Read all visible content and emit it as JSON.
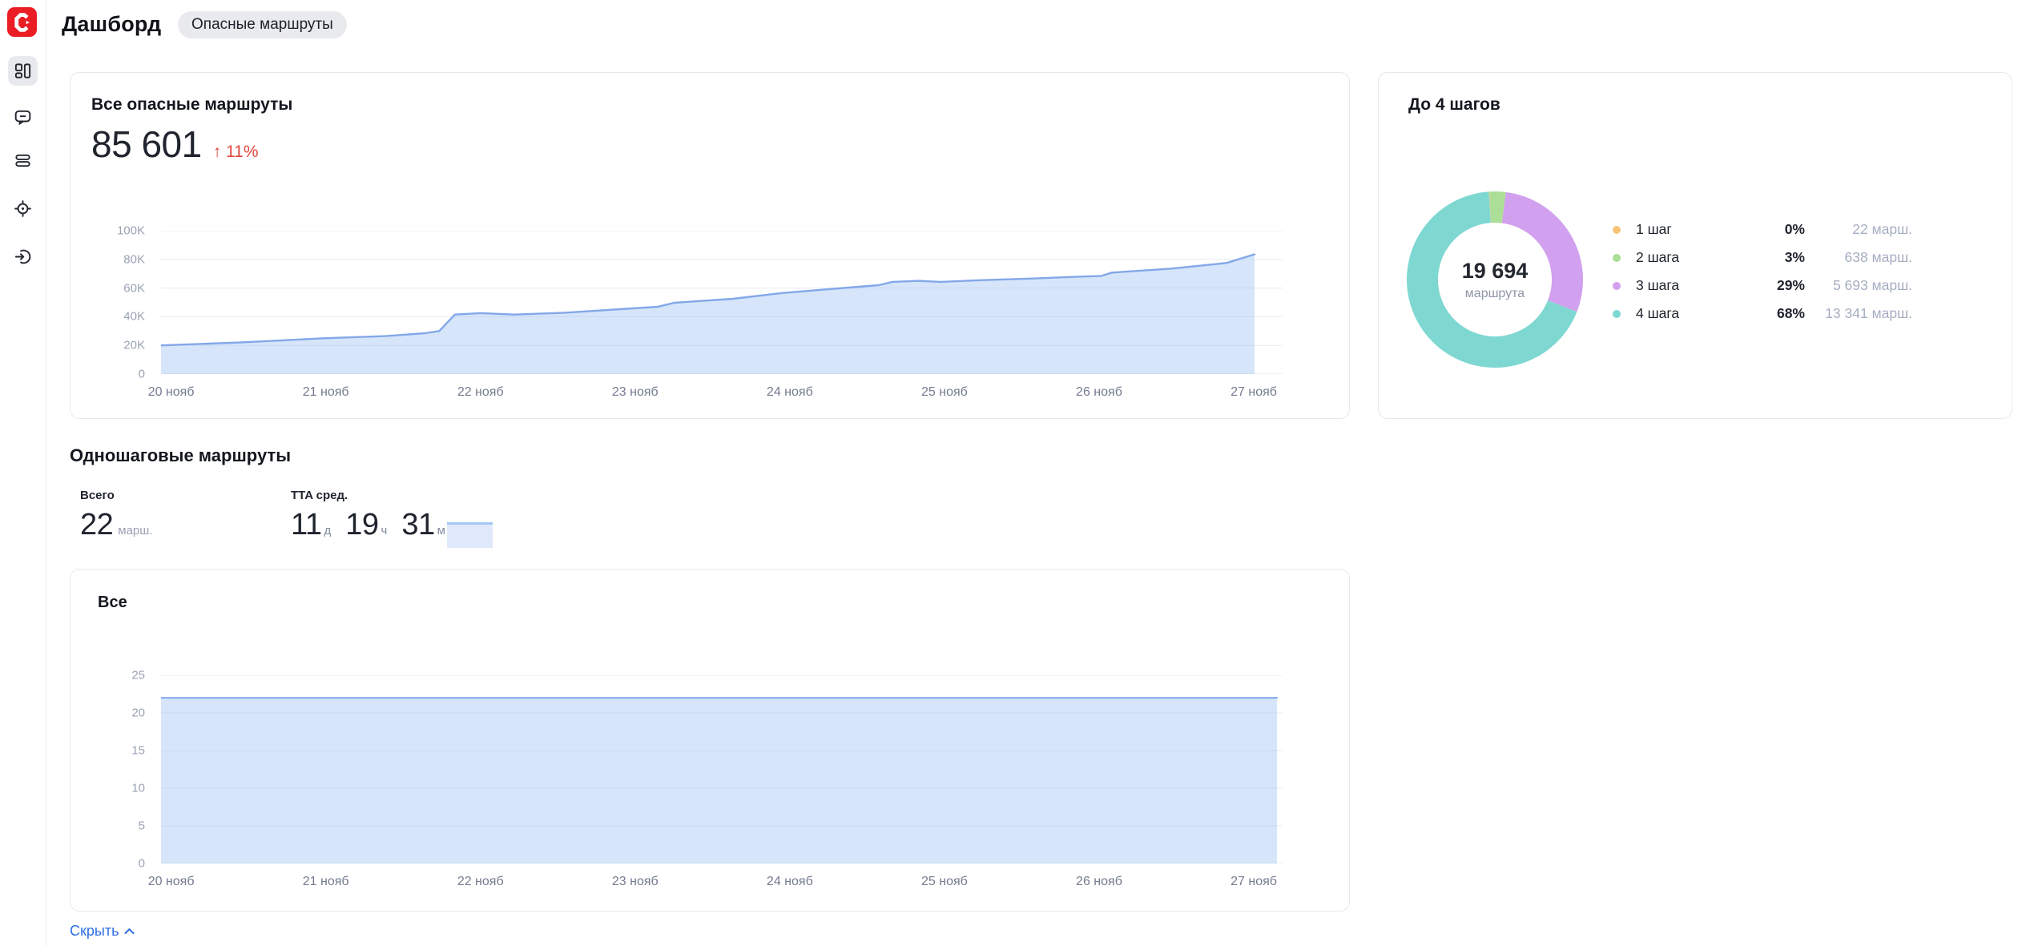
{
  "app": {
    "title": "Дашборд",
    "badge": "Опасные маршруты"
  },
  "sidebar": {
    "items": [
      {
        "id": "dashboard",
        "active": true
      },
      {
        "id": "comments",
        "active": false
      },
      {
        "id": "lists",
        "active": false
      },
      {
        "id": "locate",
        "active": false
      },
      {
        "id": "sign-in",
        "active": false
      }
    ]
  },
  "summary_card": {
    "title": "Все опасные маршруты",
    "value": "85 601",
    "trend_arrow": "↑",
    "trend": "11%"
  },
  "steps_card": {
    "title": "До 4 шагов",
    "center_value": "19 694",
    "center_label": "маршрута",
    "legend": [
      {
        "label": "1 шаг",
        "percent": "0%",
        "count": "22 марш.",
        "color": "#f7c478"
      },
      {
        "label": "2 шага",
        "percent": "3%",
        "count": "638 марш.",
        "color": "#abde96"
      },
      {
        "label": "3 шага",
        "percent": "29%",
        "count": "5 693 марш.",
        "color": "#d1a0ee"
      },
      {
        "label": "4 шага",
        "percent": "68%",
        "count": "13 341 марш.",
        "color": "#7ed8d1"
      }
    ]
  },
  "one_step_section": {
    "title": "Одношаговые маршруты",
    "total_label": "Всего",
    "total_value": "22",
    "total_unit": "марш.",
    "tta_label": "TTA сред.",
    "tta_parts": [
      {
        "value": "11",
        "unit": "д"
      },
      {
        "value": "19",
        "unit": "ч"
      },
      {
        "value": "31",
        "unit": "м"
      }
    ],
    "sub_card_title": "Все",
    "hide_label": "Скрыть"
  },
  "chart_data": [
    {
      "type": "area",
      "title": "Все опасные маршруты",
      "ylim": [
        0,
        100000
      ],
      "y_ticks": [
        "100K",
        "80K",
        "60K",
        "40K",
        "20K",
        "0"
      ],
      "x_ticks": [
        "20 нояб",
        "21 нояб",
        "22 нояб",
        "23 нояб",
        "24 нояб",
        "25 нояб",
        "26 нояб",
        "27 нояб"
      ],
      "line_color": "#83a8e9",
      "fill_color": "rgba(164,197,243,0.45)",
      "grid": true,
      "legend_position": "none",
      "points": [
        [
          0,
          20000
        ],
        [
          0.07,
          22000
        ],
        [
          0.145,
          25000
        ],
        [
          0.2,
          26500
        ],
        [
          0.235,
          28500
        ],
        [
          0.248,
          30000
        ],
        [
          0.262,
          41500
        ],
        [
          0.285,
          42500
        ],
        [
          0.315,
          41500
        ],
        [
          0.36,
          42800
        ],
        [
          0.42,
          45800
        ],
        [
          0.443,
          47000
        ],
        [
          0.458,
          49800
        ],
        [
          0.51,
          52500
        ],
        [
          0.553,
          56500
        ],
        [
          0.6,
          59500
        ],
        [
          0.64,
          62000
        ],
        [
          0.652,
          64300
        ],
        [
          0.675,
          65000
        ],
        [
          0.695,
          64300
        ],
        [
          0.73,
          65500
        ],
        [
          0.775,
          66600
        ],
        [
          0.82,
          68000
        ],
        [
          0.838,
          68400
        ],
        [
          0.848,
          70800
        ],
        [
          0.9,
          73500
        ],
        [
          0.95,
          77500
        ],
        [
          0.975,
          83500
        ]
      ]
    },
    {
      "type": "pie",
      "title": "До 4 шагов",
      "center_value": "19 694",
      "center_label": "маршрута",
      "start_angle": -4,
      "outer_radius": 110,
      "inner_radius": 71,
      "slices": [
        {
          "label": "1 шаг",
          "percent": 0.1,
          "count": 22,
          "color": "#f7c478"
        },
        {
          "label": "2 шага",
          "percent": 3,
          "count": 638,
          "color": "#abde96"
        },
        {
          "label": "3 шага",
          "percent": 29,
          "count": 5693,
          "color": "#d1a0ee"
        },
        {
          "label": "4 шага",
          "percent": 68,
          "count": 13341,
          "color": "#7ed8d1"
        }
      ]
    },
    {
      "type": "area",
      "title": "Все",
      "ylim": [
        0,
        25
      ],
      "y_ticks": [
        "25",
        "20",
        "15",
        "10",
        "5",
        "0"
      ],
      "x_ticks": [
        "20 нояб",
        "21 нояб",
        "22 нояб",
        "23 нояб",
        "24 нояб",
        "25 нояб",
        "26 нояб",
        "27 нояб"
      ],
      "line_color": "#8fb2ec",
      "fill_color": "rgba(164,197,243,0.45)",
      "grid": true,
      "legend_position": "none",
      "points": [
        [
          0,
          22
        ],
        [
          0.995,
          22
        ]
      ]
    }
  ]
}
